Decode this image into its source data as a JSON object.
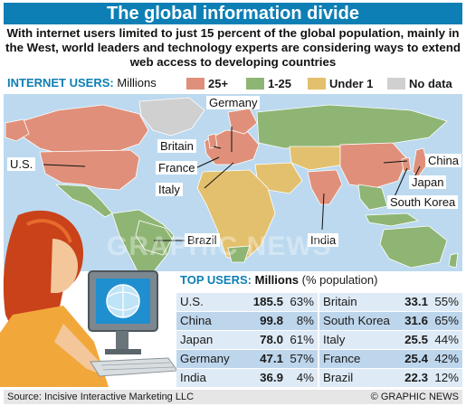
{
  "title": "The global information divide",
  "intro": "With internet users limited to just 15 percent of the global population, mainly in the West, world leaders and technology experts are considering ways to extend web access to developing countries",
  "legend": {
    "title": "INTERNET USERS:",
    "unit": "Millions",
    "items": [
      {
        "label": "25+",
        "color": "#e0907a"
      },
      {
        "label": "1-25",
        "color": "#8fb575"
      },
      {
        "label": "Under 1",
        "color": "#e3c06d"
      },
      {
        "label": "No data",
        "color": "#d0d0d0"
      }
    ]
  },
  "map_labels": {
    "germany": "Germany",
    "britain": "Britain",
    "france": "France",
    "italy": "Italy",
    "us": "U.S.",
    "china": "China",
    "japan": "Japan",
    "south_korea": "South Korea",
    "india": "India",
    "brazil": "Brazil"
  },
  "watermark": "GRAPHIC NEWS",
  "table": {
    "title": "TOP USERS:",
    "unit": "Millions",
    "pct_note": "(% population)",
    "rows": [
      {
        "left": {
          "country": "U.S.",
          "value": "185.5",
          "pct": "63%"
        },
        "right": {
          "country": "Britain",
          "value": "33.1",
          "pct": "55%"
        }
      },
      {
        "left": {
          "country": "China",
          "value": "99.8",
          "pct": "8%"
        },
        "right": {
          "country": "South Korea",
          "value": "31.6",
          "pct": "65%"
        }
      },
      {
        "left": {
          "country": "Japan",
          "value": "78.0",
          "pct": "61%"
        },
        "right": {
          "country": "Italy",
          "value": "25.5",
          "pct": "44%"
        }
      },
      {
        "left": {
          "country": "Germany",
          "value": "47.1",
          "pct": "57%"
        },
        "right": {
          "country": "France",
          "value": "25.4",
          "pct": "42%"
        }
      },
      {
        "left": {
          "country": "India",
          "value": "36.9",
          "pct": "4%"
        },
        "right": {
          "country": "Brazil",
          "value": "22.3",
          "pct": "12%"
        }
      }
    ]
  },
  "footer": {
    "source": "Source: Incisive Interactive Marketing LLC",
    "copyright": "© GRAPHIC NEWS"
  },
  "colors": {
    "accent": "#0d7fb5",
    "ocean": "#bcd9ef",
    "row_light": "#deeaf5",
    "row_dark": "#bed6ec"
  }
}
